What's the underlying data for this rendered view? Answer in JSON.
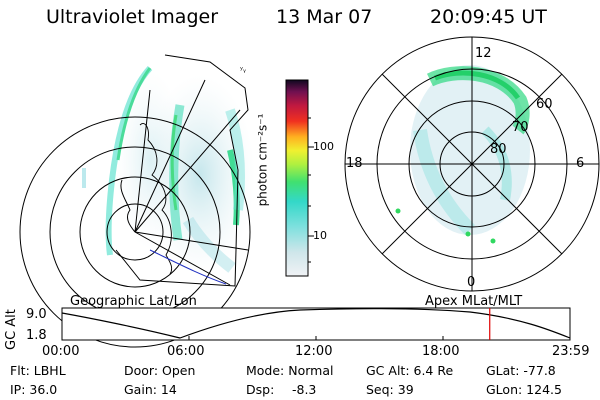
{
  "header": {
    "instrument": "Ultraviolet Imager",
    "date": "13 Mar 07",
    "time": "20:09:45 UT"
  },
  "left_panel": {
    "caption": "Geographic Lat/Lon"
  },
  "right_panel": {
    "caption": "Apex MLat/MLT",
    "mlt_labels": [
      "12",
      "18",
      "6",
      "0"
    ],
    "lat_labels": [
      "60",
      "70",
      "80"
    ]
  },
  "colorbar": {
    "label": "photon cm⁻²s⁻¹",
    "ticks": [
      "100",
      "10"
    ]
  },
  "altitude_plot": {
    "ylabel": "GC Alt",
    "yticks": [
      "9.0",
      "1.8"
    ],
    "xticks": [
      "00:00",
      "06:00",
      "12:00",
      "18:00",
      "23:59"
    ],
    "current_time_fraction": 0.842,
    "marker_color": "#e00000"
  },
  "footer": {
    "filter_label": "Flt: LBHL",
    "ip_label": "IP: 36.0",
    "door_label": "Door: Open",
    "gain_label": "Gain: 14",
    "mode_label": "Mode: Normal",
    "dsp_label": "Dsp:",
    "dsp_value": "-8.3",
    "gcalt_label": "GC Alt: 6.4 Re",
    "seq_label": "Seq: 39",
    "glat_label": "GLat: -77.8",
    "glon_label": "GLon: 124.5"
  }
}
